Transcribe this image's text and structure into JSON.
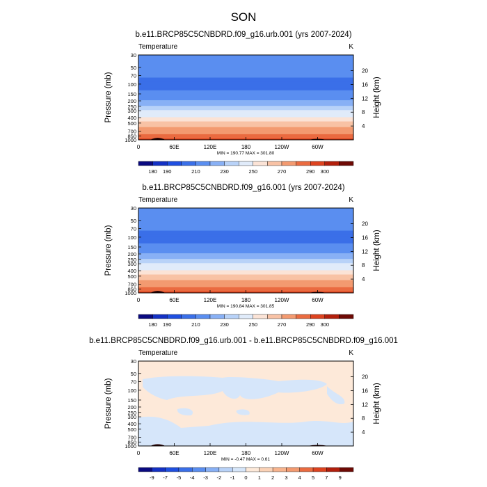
{
  "page_title": "SON",
  "chart_data": [
    {
      "type": "heatmap",
      "title": "b.e11.BRCP85C5CNBDRD.f09_g16.urb.001 (yrs 2007-2024)",
      "field_label": "Temperature",
      "units": "K",
      "ylabel": "Pressure (mb)",
      "y2label": "Height (km)",
      "x_ticks": [
        "0",
        "60E",
        "120E",
        "180",
        "120W",
        "60W"
      ],
      "x_tick_lon": [
        0,
        60,
        120,
        180,
        240,
        300
      ],
      "x_range": [
        0,
        360
      ],
      "y_ticks": [
        "30",
        "50",
        "70",
        "100",
        "150",
        "200",
        "250",
        "300",
        "400",
        "500",
        "700",
        "850",
        "1000"
      ],
      "y_tick_values": [
        30,
        50,
        70,
        100,
        150,
        200,
        250,
        300,
        400,
        500,
        700,
        850,
        1000
      ],
      "ylim": [
        30,
        1000
      ],
      "y_scale": "log",
      "y2_ticks": [
        "20",
        "16",
        "12",
        "8",
        "4"
      ],
      "y2_tick_values": [
        20,
        16,
        12,
        8,
        4
      ],
      "stats": "MIN = 190.77  MAX = 301.80",
      "contour_levels": [
        180,
        190,
        200,
        210,
        220,
        230,
        240,
        250,
        260,
        270,
        280,
        290,
        300
      ],
      "colorbar_labels": [
        "180",
        "190",
        "210",
        "230",
        "250",
        "270",
        "290",
        "300"
      ],
      "colorbar_label_levels": [
        180,
        190,
        210,
        230,
        250,
        270,
        290,
        300
      ],
      "colors": [
        "#0a0a80",
        "#1431c4",
        "#1f4fe0",
        "#3a6fe8",
        "#5a8ef0",
        "#88b0f5",
        "#b8d2f8",
        "#e0ebfa",
        "#fbe3d6",
        "#f8c2a5",
        "#f39a70",
        "#ea6b40",
        "#dd4320",
        "#b21f0c",
        "#6e0a05"
      ],
      "profile": [
        {
          "p": 30,
          "t": 220
        },
        {
          "p": 50,
          "t": 215
        },
        {
          "p": 70,
          "t": 212
        },
        {
          "p": 100,
          "t": 205
        },
        {
          "p": 150,
          "t": 213
        },
        {
          "p": 200,
          "t": 220
        },
        {
          "p": 250,
          "t": 230
        },
        {
          "p": 300,
          "t": 240
        },
        {
          "p": 400,
          "t": 252
        },
        {
          "p": 500,
          "t": 262
        },
        {
          "p": 700,
          "t": 276
        },
        {
          "p": 850,
          "t": 284
        },
        {
          "p": 1000,
          "t": 292
        }
      ]
    },
    {
      "type": "heatmap",
      "title": "b.e11.BRCP85C5CNBDRD.f09_g16.001 (yrs 2007-2024)",
      "field_label": "Temperature",
      "units": "K",
      "ylabel": "Pressure (mb)",
      "y2label": "Height (km)",
      "x_ticks": [
        "0",
        "60E",
        "120E",
        "180",
        "120W",
        "60W"
      ],
      "x_tick_lon": [
        0,
        60,
        120,
        180,
        240,
        300
      ],
      "x_range": [
        0,
        360
      ],
      "y_ticks": [
        "30",
        "50",
        "70",
        "100",
        "150",
        "200",
        "250",
        "300",
        "400",
        "500",
        "700",
        "850",
        "1000"
      ],
      "y_tick_values": [
        30,
        50,
        70,
        100,
        150,
        200,
        250,
        300,
        400,
        500,
        700,
        850,
        1000
      ],
      "ylim": [
        30,
        1000
      ],
      "y_scale": "log",
      "y2_ticks": [
        "20",
        "16",
        "12",
        "8",
        "4"
      ],
      "y2_tick_values": [
        20,
        16,
        12,
        8,
        4
      ],
      "stats": "MIN = 190.84  MAX = 301.85",
      "contour_levels": [
        180,
        190,
        200,
        210,
        220,
        230,
        240,
        250,
        260,
        270,
        280,
        290,
        300
      ],
      "colorbar_labels": [
        "180",
        "190",
        "210",
        "230",
        "250",
        "270",
        "290",
        "300"
      ],
      "colorbar_label_levels": [
        180,
        190,
        210,
        230,
        250,
        270,
        290,
        300
      ],
      "colors": [
        "#0a0a80",
        "#1431c4",
        "#1f4fe0",
        "#3a6fe8",
        "#5a8ef0",
        "#88b0f5",
        "#b8d2f8",
        "#e0ebfa",
        "#fbe3d6",
        "#f8c2a5",
        "#f39a70",
        "#ea6b40",
        "#dd4320",
        "#b21f0c",
        "#6e0a05"
      ],
      "profile": [
        {
          "p": 30,
          "t": 220
        },
        {
          "p": 50,
          "t": 215
        },
        {
          "p": 70,
          "t": 212
        },
        {
          "p": 100,
          "t": 205
        },
        {
          "p": 150,
          "t": 213
        },
        {
          "p": 200,
          "t": 220
        },
        {
          "p": 250,
          "t": 230
        },
        {
          "p": 300,
          "t": 240
        },
        {
          "p": 400,
          "t": 252
        },
        {
          "p": 500,
          "t": 262
        },
        {
          "p": 700,
          "t": 276
        },
        {
          "p": 850,
          "t": 284
        },
        {
          "p": 1000,
          "t": 292
        }
      ]
    },
    {
      "type": "heatmap",
      "title": "b.e11.BRCP85C5CNBDRD.f09_g16.urb.001 - b.e11.BRCP85C5CNBDRD.f09_g16.001",
      "field_label": "Temperature",
      "units": "K",
      "ylabel": "Pressure (mb)",
      "y2label": "Height (km)",
      "x_ticks": [
        "0",
        "60E",
        "120E",
        "180",
        "120W",
        "60W"
      ],
      "x_tick_lon": [
        0,
        60,
        120,
        180,
        240,
        300
      ],
      "x_range": [
        0,
        360
      ],
      "y_ticks": [
        "30",
        "50",
        "70",
        "100",
        "150",
        "200",
        "250",
        "300",
        "400",
        "500",
        "700",
        "850",
        "1000"
      ],
      "y_tick_values": [
        30,
        50,
        70,
        100,
        150,
        200,
        250,
        300,
        400,
        500,
        700,
        850,
        1000
      ],
      "ylim": [
        30,
        1000
      ],
      "y_scale": "log",
      "y2_ticks": [
        "20",
        "16",
        "12",
        "8",
        "4"
      ],
      "y2_tick_values": [
        20,
        16,
        12,
        8,
        4
      ],
      "stats": "MIN = -0.47  MAX =  0.61",
      "contour_levels": [
        -9,
        -7,
        -5,
        -4,
        -3,
        -2,
        -1,
        0,
        1,
        2,
        3,
        4,
        5,
        7,
        9
      ],
      "colorbar_labels": [
        "-9",
        "-7",
        "-5",
        "-4",
        "-3",
        "-2",
        "-1",
        "0",
        "1",
        "2",
        "3",
        "4",
        "5",
        "7",
        "9"
      ],
      "colorbar_label_levels": [
        -9,
        -7,
        -5,
        -4,
        -3,
        -2,
        -1,
        0,
        1,
        2,
        3,
        4,
        5,
        7,
        9
      ],
      "colors": [
        "#0a0a80",
        "#1431c4",
        "#1f4fe0",
        "#3a6fe8",
        "#5a8ef0",
        "#88b0f5",
        "#b8d2f8",
        "#d6e6fa",
        "#fde9d9",
        "#fbd2b6",
        "#f8b48e",
        "#f39a70",
        "#ea6b40",
        "#dd4320",
        "#b21f0c",
        "#6e0a05"
      ],
      "background_color": "#fde9d9",
      "negative_color": "#d6e6fa"
    }
  ]
}
